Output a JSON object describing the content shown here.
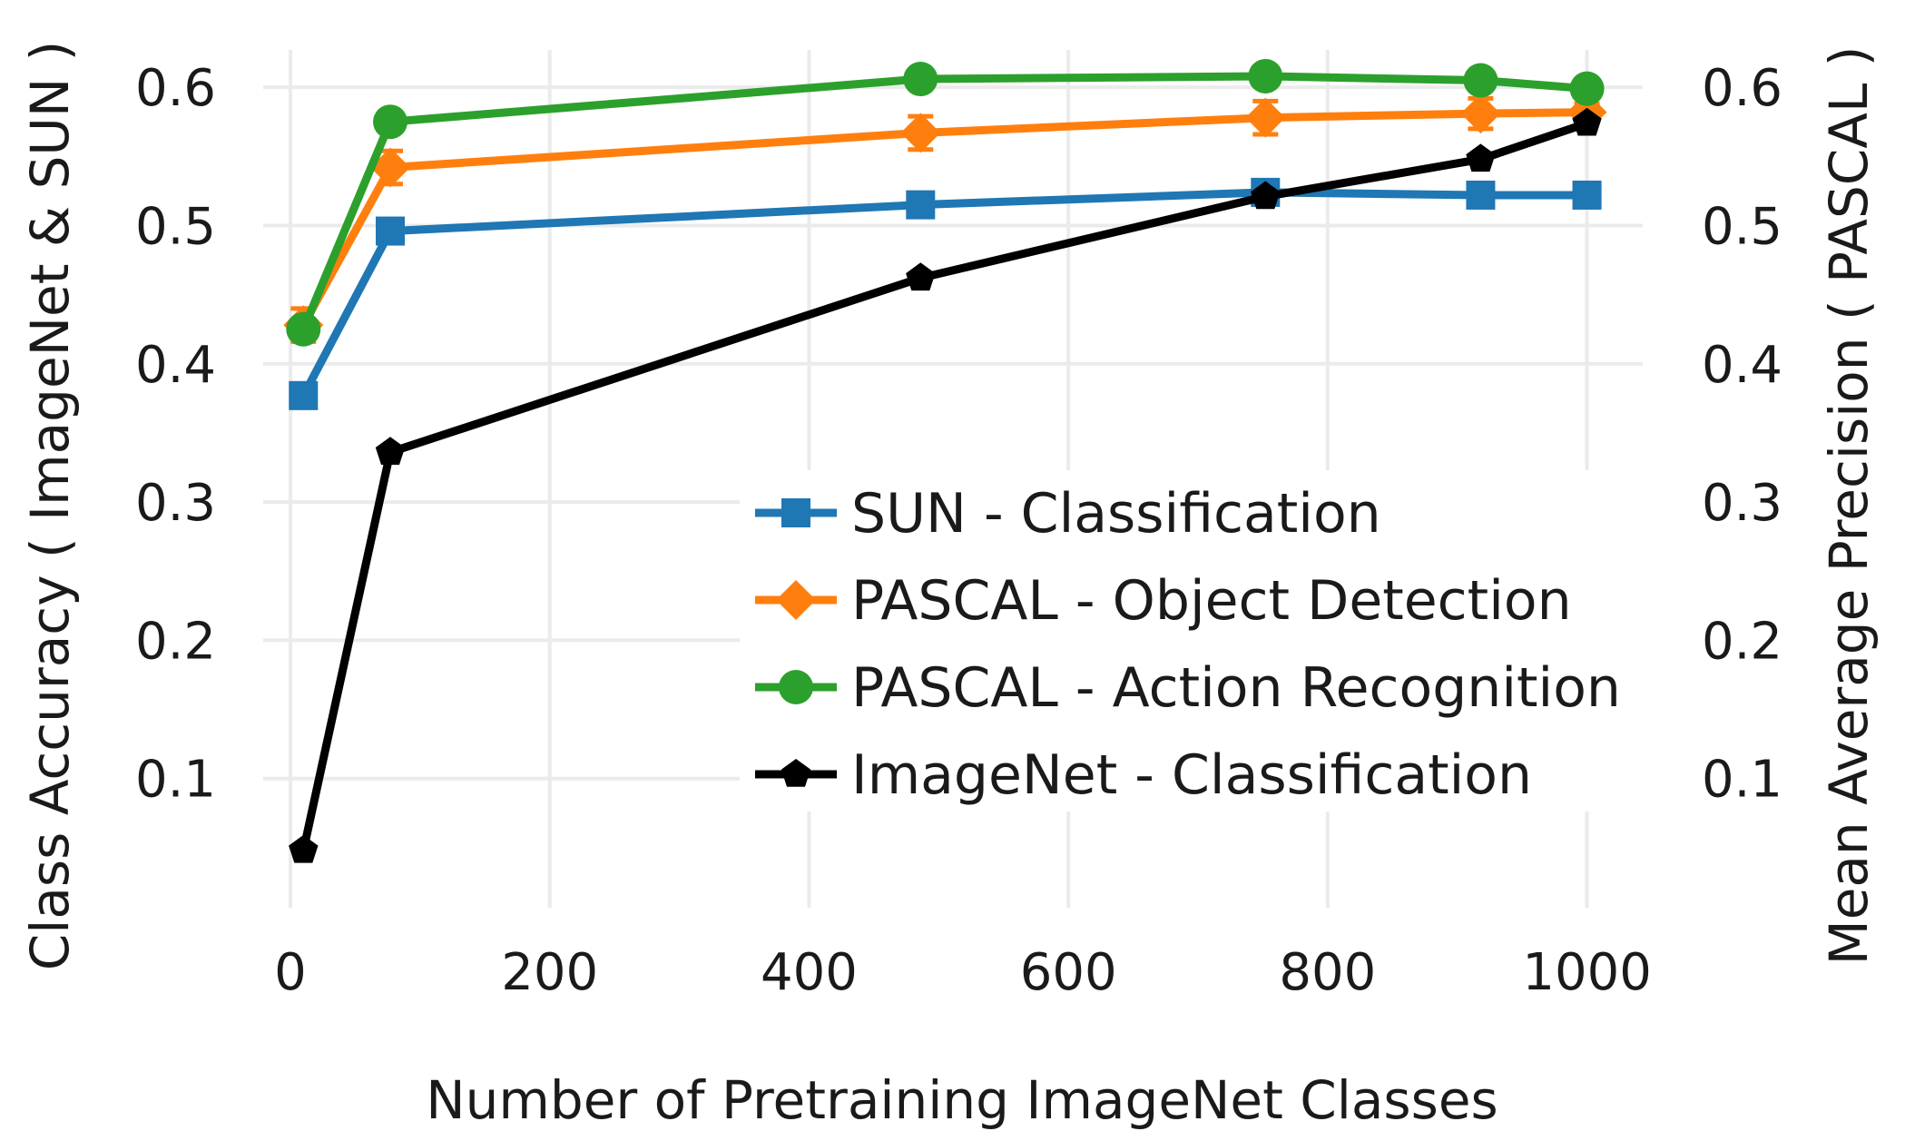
{
  "chart_data": {
    "type": "line",
    "xlabel": "Number of Pretraining ImageNet Classes",
    "ylabel_left": "Class Accuracy ( ImageNet & SUN )",
    "ylabel_right": "Mean Average Precision ( PASCAL )",
    "xlim": [
      -35,
      1050
    ],
    "ylim": [
      0.0,
      0.65
    ],
    "x_ticks": [
      0,
      200,
      400,
      600,
      800,
      1000
    ],
    "x_tick_labels": [
      "0",
      "200",
      "400",
      "600",
      "800",
      "1000"
    ],
    "y_ticks": [
      0.1,
      0.2,
      0.3,
      0.4,
      0.5,
      0.6
    ],
    "y_tick_labels": [
      "0.1",
      "0.2",
      "0.3",
      "0.4",
      "0.5",
      "0.6"
    ],
    "grid": true,
    "legend_position": "bottom-right",
    "x": [
      10,
      77,
      486,
      752,
      918,
      1000
    ],
    "series": [
      {
        "name": "SUN - Classification",
        "color": "#1f77b4",
        "marker": "square",
        "values": [
          0.377,
          0.496,
          0.515,
          0.524,
          0.522,
          0.522
        ]
      },
      {
        "name": "PASCAL - Object Detection",
        "color": "#ff7f0e",
        "marker": "diamond",
        "values": [
          0.428,
          0.542,
          0.567,
          0.578,
          0.581,
          0.582
        ],
        "error": [
          0.012,
          0.012,
          0.012,
          0.012,
          0.011,
          0.006
        ]
      },
      {
        "name": "PASCAL - Action Recognition",
        "color": "#2ca02c",
        "marker": "circle",
        "values": [
          0.425,
          0.575,
          0.606,
          0.608,
          0.605,
          0.599
        ]
      },
      {
        "name": "ImageNet - Classification",
        "color": "#000000",
        "marker": "pentagon",
        "values": [
          0.048,
          0.336,
          0.462,
          0.521,
          0.548,
          0.574
        ]
      }
    ]
  }
}
